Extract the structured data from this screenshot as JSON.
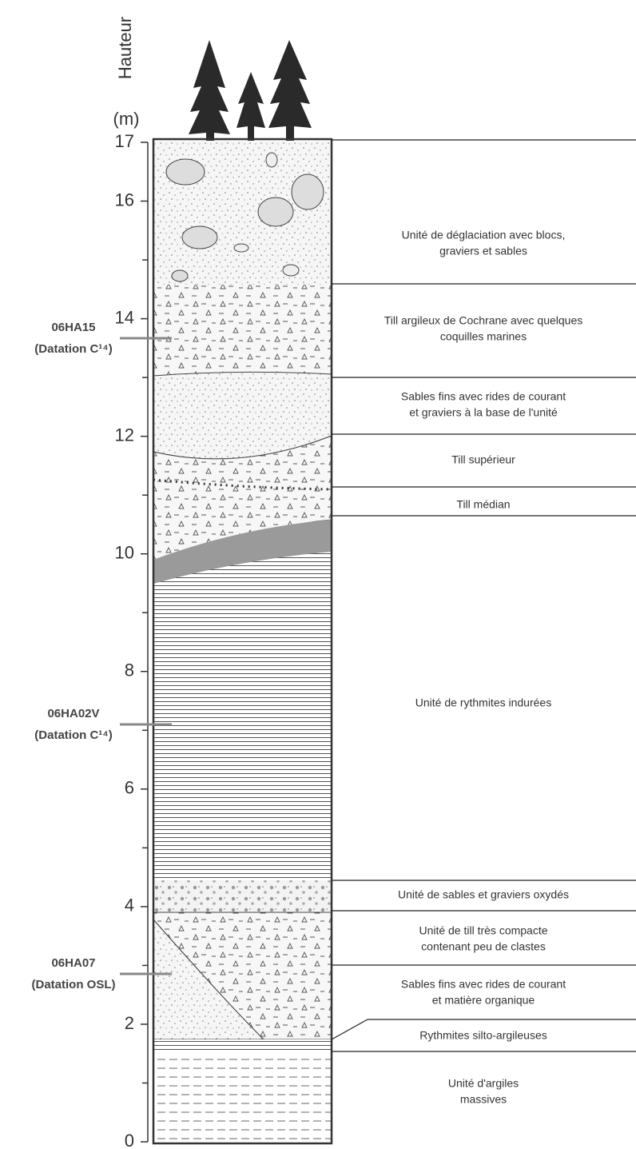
{
  "axis": {
    "label": "Hauteur",
    "unit": "(m)",
    "ylim": [
      0,
      17
    ],
    "yticks": [
      0,
      2,
      4,
      6,
      8,
      10,
      12,
      14,
      16,
      17
    ],
    "minor_yticks": [
      1,
      3,
      5,
      7,
      9,
      11,
      13,
      15
    ]
  },
  "units": [
    {
      "lines": [
        "Unité de déglaciation avec blocs,",
        "graviers et sables"
      ]
    },
    {
      "lines": [
        "Till argileux de Cochrane avec quelques",
        "coquilles marines"
      ]
    },
    {
      "lines": [
        "Sables fins avec rides de courant",
        "et graviers à la base de l'unité"
      ]
    },
    {
      "lines": [
        "Till supérieur"
      ]
    },
    {
      "lines": [
        "Till médian"
      ]
    },
    {
      "lines": [
        "Unité de rythmites  indurées"
      ]
    },
    {
      "lines": [
        "Unité de sables et graviers oxydés"
      ]
    },
    {
      "lines": [
        "Unité de till très compacte",
        "contenant peu de clastes"
      ]
    },
    {
      "lines": [
        "Sables fins avec rides de courant",
        "et matière organique"
      ]
    },
    {
      "lines": [
        "Rythmites silto-argileuses"
      ]
    },
    {
      "lines": [
        "Unité d'argiles",
        "massives"
      ]
    }
  ],
  "samples": [
    {
      "id": "06HA15",
      "method": "(Datation C¹⁴)"
    },
    {
      "id": "06HA02V",
      "method": "(Datation C¹⁴)"
    },
    {
      "id": "06HA07",
      "method": "(Datation OSL)"
    }
  ]
}
